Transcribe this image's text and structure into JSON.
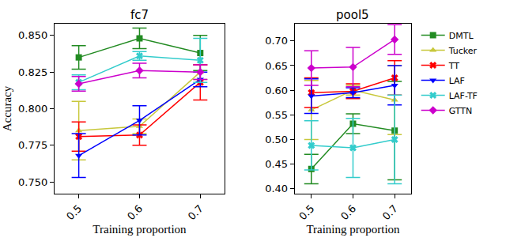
{
  "chart_data": [
    {
      "type": "line",
      "title": "fc7",
      "x_label": "Training proportion",
      "y_label": "Accuracy",
      "x": [
        0.5,
        0.6,
        0.7
      ],
      "xlim": [
        0.46,
        0.74
      ],
      "xticks": [
        0.5,
        0.6,
        0.7
      ],
      "ylim": [
        0.742,
        0.858
      ],
      "yticks": [
        {
          "value": 0.75,
          "label": "0.750"
        },
        0.775,
        {
          "value": 0.8,
          "label": "0.800"
        },
        0.825,
        {
          "value": 0.85,
          "label": "0.850"
        }
      ],
      "grid": false,
      "series": [
        {
          "name": "DMTL",
          "color": "#228b22",
          "marker": "square",
          "values": [
            0.835,
            0.848,
            0.838
          ],
          "errors": [
            0.008,
            0.007,
            0.012
          ]
        },
        {
          "name": "Tucker",
          "color": "#c8c83c",
          "marker": "triangle-up",
          "values": [
            0.785,
            0.788,
            0.825
          ],
          "errors": [
            0.02,
            0.005,
            0.005
          ]
        },
        {
          "name": "TT",
          "color": "#ff0000",
          "marker": "x",
          "values": [
            0.781,
            0.782,
            0.818
          ],
          "errors": [
            0.01,
            0.007,
            0.012
          ]
        },
        {
          "name": "LAF",
          "color": "#0000ff",
          "marker": "triangle-down",
          "values": [
            0.768,
            0.792,
            0.82
          ],
          "errors": [
            0.015,
            0.01,
            0.005
          ]
        },
        {
          "name": "LAF-TF",
          "color": "#33cccc",
          "marker": "x",
          "values": [
            0.818,
            0.836,
            0.833
          ],
          "errors": [
            0.005,
            0.003,
            0.015
          ]
        },
        {
          "name": "GTTN",
          "color": "#cc00cc",
          "marker": "diamond",
          "values": [
            0.817,
            0.826,
            0.825
          ],
          "errors": [
            0.005,
            0.005,
            0.005
          ]
        }
      ]
    },
    {
      "type": "line",
      "title": "pool5",
      "x_label": "Training proportion",
      "x": [
        0.5,
        0.6,
        0.7
      ],
      "xlim": [
        0.46,
        0.74
      ],
      "xticks": [
        0.5,
        0.6,
        0.7
      ],
      "ylim": [
        0.39,
        0.735
      ],
      "yticks": [
        {
          "value": 0.4,
          "label": "0.40"
        },
        0.45,
        {
          "value": 0.5,
          "label": "0.50"
        },
        0.55,
        {
          "value": 0.6,
          "label": "0.60"
        },
        0.65,
        {
          "value": 0.7,
          "label": "0.70"
        }
      ],
      "grid": false,
      "legend": "right",
      "series": [
        {
          "name": "DMTL",
          "color": "#228b22",
          "marker": "square",
          "values": [
            0.44,
            0.532,
            0.518
          ],
          "errors": [
            0.03,
            0.02,
            0.1
          ]
        },
        {
          "name": "Tucker",
          "color": "#c8c83c",
          "marker": "triangle-up",
          "values": [
            0.56,
            0.6,
            0.58
          ],
          "errors": [
            0.06,
            0.01,
            0.07
          ]
        },
        {
          "name": "TT",
          "color": "#ff0000",
          "marker": "x",
          "values": [
            0.595,
            0.598,
            0.625
          ],
          "errors": [
            0.03,
            0.015,
            0.035
          ]
        },
        {
          "name": "LAF",
          "color": "#0000ff",
          "marker": "triangle-down",
          "values": [
            0.588,
            0.595,
            0.61
          ],
          "errors": [
            0.035,
            0.01,
            0.04
          ]
        },
        {
          "name": "LAF-TF",
          "color": "#33cccc",
          "marker": "x",
          "values": [
            0.488,
            0.483,
            0.5
          ],
          "errors": [
            0.05,
            0.06,
            0.09
          ]
        },
        {
          "name": "GTTN",
          "color": "#cc00cc",
          "marker": "diamond",
          "values": [
            0.645,
            0.647,
            0.703
          ],
          "errors": [
            0.035,
            0.04,
            0.03
          ]
        }
      ]
    }
  ]
}
